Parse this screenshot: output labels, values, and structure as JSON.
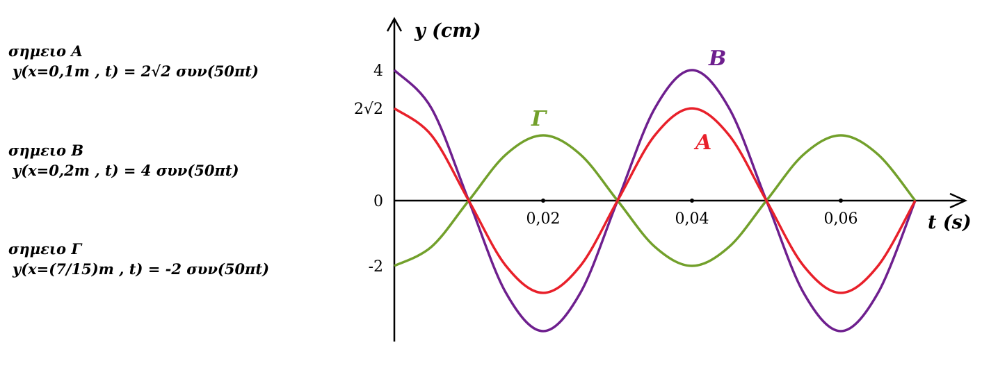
{
  "equations": [
    {
      "name": "σημειο Α",
      "formula": "y(x=0,1m , t) =  2√2 συν(50πt)"
    },
    {
      "name": "σημειο Β",
      "formula": "y(x=0,2m , t) =  4 συν(50πt)"
    },
    {
      "name": "σημειο Γ",
      "formula": "y(x=(7/15)m , t) = -2 συν(50πt)"
    }
  ],
  "chart_data": {
    "type": "line",
    "title": "",
    "xlabel": "t (s)",
    "ylabel": "y (cm)",
    "xlim": [
      0,
      0.07
    ],
    "ylim": [
      -4,
      4
    ],
    "x_ticks": [
      {
        "value": 0.02,
        "label": "0,02"
      },
      {
        "value": 0.04,
        "label": "0,04"
      },
      {
        "value": 0.06,
        "label": "0,06"
      }
    ],
    "y_ticks": [
      {
        "value": 4,
        "label": "4"
      },
      {
        "value": 2.828,
        "label": "2√2"
      },
      {
        "value": 0,
        "label": "0"
      },
      {
        "value": -2,
        "label": "-2"
      }
    ],
    "x": [
      0,
      0.005,
      0.01,
      0.015,
      0.02,
      0.025,
      0.03,
      0.035,
      0.04,
      0.045,
      0.05,
      0.055,
      0.06,
      0.065,
      0.07
    ],
    "series": [
      {
        "name": "Α",
        "color": "#e8202a",
        "values": [
          2.828,
          2.0,
          0,
          -2.0,
          -2.828,
          -2.0,
          0,
          2.0,
          2.828,
          2.0,
          0,
          -2.0,
          -2.828,
          -2.0,
          0
        ]
      },
      {
        "name": "Β",
        "color": "#6e1f8e",
        "values": [
          4,
          2.828,
          0,
          -2.828,
          -4,
          -2.828,
          0,
          2.828,
          4,
          2.828,
          0,
          -2.828,
          -4,
          -2.828,
          0
        ]
      },
      {
        "name": "Γ",
        "color": "#72a02b",
        "values": [
          -2,
          -1.414,
          0,
          1.414,
          2,
          1.414,
          0,
          -1.414,
          -2,
          -1.414,
          0,
          1.414,
          2,
          1.414,
          0
        ]
      }
    ],
    "grid": false
  }
}
